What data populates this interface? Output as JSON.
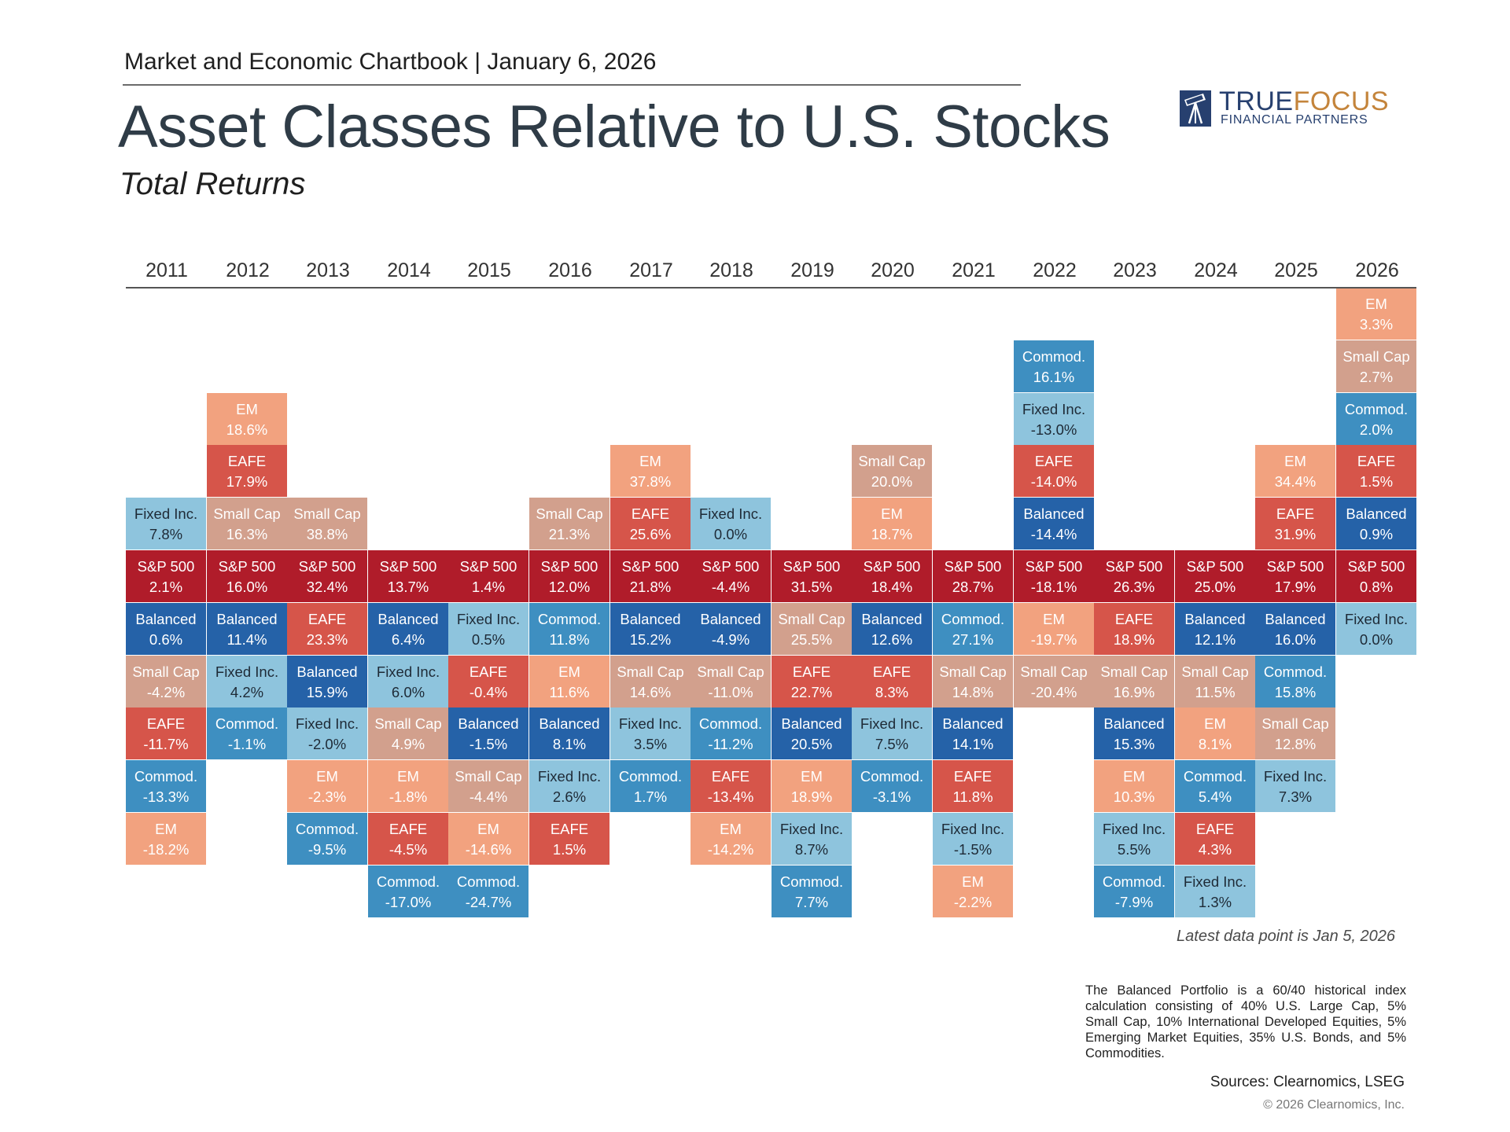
{
  "header": {
    "chartbook_line": "Market and Economic Chartbook | January 6, 2026",
    "title": "Asset Classes Relative to U.S. Stocks",
    "subtitle": "Total Returns"
  },
  "logo": {
    "name_part1": "TRUE",
    "name_part2": "FOCUS",
    "subline": "FINANCIAL PARTNERS"
  },
  "colors": {
    "S&P 500": "#b01c2a",
    "Balanced": "#2562a8",
    "Fixed Inc.": "#8ec4dd",
    "Commod.": "#3e8fc1",
    "EM": "#f2a27f",
    "EAFE": "#d6554a",
    "Small Cap": "#d2a08d"
  },
  "chart_data": {
    "type": "table",
    "title": "Asset Classes Relative to U.S. Stocks",
    "subtitle": "Total Returns",
    "unit": "%",
    "years": [
      {
        "year": "2011",
        "above": [
          {
            "asset": "Fixed Inc.",
            "value": "7.8%"
          }
        ],
        "sp500": "2.1%",
        "below": [
          {
            "asset": "Balanced",
            "value": "0.6%"
          },
          {
            "asset": "Small Cap",
            "value": "-4.2%"
          },
          {
            "asset": "EAFE",
            "value": "-11.7%"
          },
          {
            "asset": "Commod.",
            "value": "-13.3%"
          },
          {
            "asset": "EM",
            "value": "-18.2%"
          }
        ]
      },
      {
        "year": "2012",
        "above": [
          {
            "asset": "EM",
            "value": "18.6%"
          },
          {
            "asset": "EAFE",
            "value": "17.9%"
          },
          {
            "asset": "Small Cap",
            "value": "16.3%"
          }
        ],
        "sp500": "16.0%",
        "below": [
          {
            "asset": "Balanced",
            "value": "11.4%"
          },
          {
            "asset": "Fixed Inc.",
            "value": "4.2%"
          },
          {
            "asset": "Commod.",
            "value": "-1.1%"
          }
        ]
      },
      {
        "year": "2013",
        "above": [
          {
            "asset": "Small Cap",
            "value": "38.8%"
          }
        ],
        "sp500": "32.4%",
        "below": [
          {
            "asset": "EAFE",
            "value": "23.3%"
          },
          {
            "asset": "Balanced",
            "value": "15.9%"
          },
          {
            "asset": "Fixed Inc.",
            "value": "-2.0%"
          },
          {
            "asset": "EM",
            "value": "-2.3%"
          },
          {
            "asset": "Commod.",
            "value": "-9.5%"
          }
        ]
      },
      {
        "year": "2014",
        "above": [],
        "sp500": "13.7%",
        "below": [
          {
            "asset": "Balanced",
            "value": "6.4%"
          },
          {
            "asset": "Fixed Inc.",
            "value": "6.0%"
          },
          {
            "asset": "Small Cap",
            "value": "4.9%"
          },
          {
            "asset": "EM",
            "value": "-1.8%"
          },
          {
            "asset": "EAFE",
            "value": "-4.5%"
          },
          {
            "asset": "Commod.",
            "value": "-17.0%"
          }
        ]
      },
      {
        "year": "2015",
        "above": [],
        "sp500": "1.4%",
        "below": [
          {
            "asset": "Fixed Inc.",
            "value": "0.5%"
          },
          {
            "asset": "EAFE",
            "value": "-0.4%"
          },
          {
            "asset": "Balanced",
            "value": "-1.5%"
          },
          {
            "asset": "Small Cap",
            "value": "-4.4%"
          },
          {
            "asset": "EM",
            "value": "-14.6%"
          },
          {
            "asset": "Commod.",
            "value": "-24.7%"
          }
        ]
      },
      {
        "year": "2016",
        "above": [
          {
            "asset": "Small Cap",
            "value": "21.3%"
          }
        ],
        "sp500": "12.0%",
        "below": [
          {
            "asset": "Commod.",
            "value": "11.8%"
          },
          {
            "asset": "EM",
            "value": "11.6%"
          },
          {
            "asset": "Balanced",
            "value": "8.1%"
          },
          {
            "asset": "Fixed Inc.",
            "value": "2.6%"
          },
          {
            "asset": "EAFE",
            "value": "1.5%"
          }
        ]
      },
      {
        "year": "2017",
        "above": [
          {
            "asset": "EM",
            "value": "37.8%"
          },
          {
            "asset": "EAFE",
            "value": "25.6%"
          }
        ],
        "sp500": "21.8%",
        "below": [
          {
            "asset": "Balanced",
            "value": "15.2%"
          },
          {
            "asset": "Small Cap",
            "value": "14.6%"
          },
          {
            "asset": "Fixed Inc.",
            "value": "3.5%"
          },
          {
            "asset": "Commod.",
            "value": "1.7%"
          }
        ]
      },
      {
        "year": "2018",
        "above": [
          {
            "asset": "Fixed Inc.",
            "value": "0.0%"
          }
        ],
        "sp500": "-4.4%",
        "below": [
          {
            "asset": "Balanced",
            "value": "-4.9%"
          },
          {
            "asset": "Small Cap",
            "value": "-11.0%"
          },
          {
            "asset": "Commod.",
            "value": "-11.2%"
          },
          {
            "asset": "EAFE",
            "value": "-13.4%"
          },
          {
            "asset": "EM",
            "value": "-14.2%"
          }
        ]
      },
      {
        "year": "2019",
        "above": [],
        "sp500": "31.5%",
        "below": [
          {
            "asset": "Small Cap",
            "value": "25.5%"
          },
          {
            "asset": "EAFE",
            "value": "22.7%"
          },
          {
            "asset": "Balanced",
            "value": "20.5%"
          },
          {
            "asset": "EM",
            "value": "18.9%"
          },
          {
            "asset": "Fixed Inc.",
            "value": "8.7%"
          },
          {
            "asset": "Commod.",
            "value": "7.7%"
          }
        ]
      },
      {
        "year": "2020",
        "above": [
          {
            "asset": "Small Cap",
            "value": "20.0%"
          },
          {
            "asset": "EM",
            "value": "18.7%"
          }
        ],
        "sp500": "18.4%",
        "below": [
          {
            "asset": "Balanced",
            "value": "12.6%"
          },
          {
            "asset": "EAFE",
            "value": "8.3%"
          },
          {
            "asset": "Fixed Inc.",
            "value": "7.5%"
          },
          {
            "asset": "Commod.",
            "value": "-3.1%"
          }
        ]
      },
      {
        "year": "2021",
        "above": [],
        "sp500": "28.7%",
        "below": [
          {
            "asset": "Commod.",
            "value": "27.1%"
          },
          {
            "asset": "Small Cap",
            "value": "14.8%"
          },
          {
            "asset": "Balanced",
            "value": "14.1%"
          },
          {
            "asset": "EAFE",
            "value": "11.8%"
          },
          {
            "asset": "Fixed Inc.",
            "value": "-1.5%"
          },
          {
            "asset": "EM",
            "value": "-2.2%"
          }
        ]
      },
      {
        "year": "2022",
        "above": [
          {
            "asset": "Commod.",
            "value": "16.1%"
          },
          {
            "asset": "Fixed Inc.",
            "value": "-13.0%"
          },
          {
            "asset": "EAFE",
            "value": "-14.0%"
          },
          {
            "asset": "Balanced",
            "value": "-14.4%"
          }
        ],
        "sp500": "-18.1%",
        "below": [
          {
            "asset": "EM",
            "value": "-19.7%"
          },
          {
            "asset": "Small Cap",
            "value": "-20.4%"
          }
        ]
      },
      {
        "year": "2023",
        "above": [],
        "sp500": "26.3%",
        "below": [
          {
            "asset": "EAFE",
            "value": "18.9%"
          },
          {
            "asset": "Small Cap",
            "value": "16.9%"
          },
          {
            "asset": "Balanced",
            "value": "15.3%"
          },
          {
            "asset": "EM",
            "value": "10.3%"
          },
          {
            "asset": "Fixed Inc.",
            "value": "5.5%"
          },
          {
            "asset": "Commod.",
            "value": "-7.9%"
          }
        ]
      },
      {
        "year": "2024",
        "above": [],
        "sp500": "25.0%",
        "below": [
          {
            "asset": "Balanced",
            "value": "12.1%"
          },
          {
            "asset": "Small Cap",
            "value": "11.5%"
          },
          {
            "asset": "EM",
            "value": "8.1%"
          },
          {
            "asset": "Commod.",
            "value": "5.4%"
          },
          {
            "asset": "EAFE",
            "value": "4.3%"
          },
          {
            "asset": "Fixed Inc.",
            "value": "1.3%"
          }
        ]
      },
      {
        "year": "2025",
        "above": [
          {
            "asset": "EM",
            "value": "34.4%"
          },
          {
            "asset": "EAFE",
            "value": "31.9%"
          }
        ],
        "sp500": "17.9%",
        "below": [
          {
            "asset": "Balanced",
            "value": "16.0%"
          },
          {
            "asset": "Commod.",
            "value": "15.8%"
          },
          {
            "asset": "Small Cap",
            "value": "12.8%"
          },
          {
            "asset": "Fixed Inc.",
            "value": "7.3%"
          }
        ]
      },
      {
        "year": "2026",
        "above": [
          {
            "asset": "EM",
            "value": "3.3%"
          },
          {
            "asset": "Small Cap",
            "value": "2.7%"
          },
          {
            "asset": "Commod.",
            "value": "2.0%"
          },
          {
            "asset": "EAFE",
            "value": "1.5%"
          },
          {
            "asset": "Balanced",
            "value": "0.9%"
          }
        ],
        "sp500": "0.8%",
        "below": [
          {
            "asset": "Fixed Inc.",
            "value": "0.0%"
          }
        ]
      }
    ]
  },
  "notes": {
    "latest": "Latest data point is Jan 5, 2026",
    "footnote": "The Balanced Portfolio is a 60/40 historical index calculation consisting of 40% U.S. Large Cap, 5% Small Cap, 10% International Developed Equities, 5% Emerging Market Equities, 35% U.S. Bonds, and 5% Commodities.",
    "sources": "Sources: Clearnomics, LSEG",
    "copyright": "© 2026 Clearnomics, Inc."
  }
}
